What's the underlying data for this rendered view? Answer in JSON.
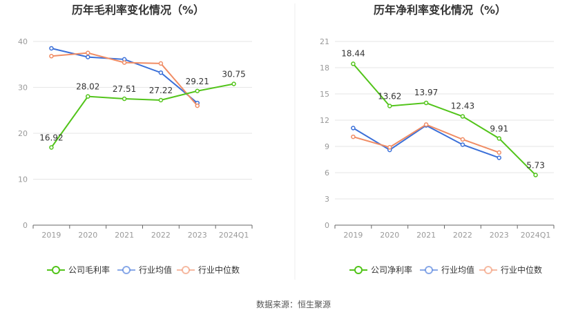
{
  "source": "数据来源：恒生聚源",
  "colors": {
    "company": "#52c41a",
    "industry_avg": "#3a6fd8",
    "industry_median": "#f08c64",
    "grid": "#e6e6e6",
    "axis": "#666666",
    "tick": "#999999",
    "label": "#333333",
    "divider": "#eeeeee"
  },
  "chart_data": [
    {
      "type": "line",
      "title": "历年毛利率变化情况（%）",
      "categories": [
        "2019",
        "2020",
        "2021",
        "2022",
        "2023",
        "2024Q1"
      ],
      "ylim": [
        0,
        40
      ],
      "yticks": [
        0,
        10,
        20,
        30,
        40
      ],
      "grid": true,
      "legend_position": "bottom",
      "series": [
        {
          "name": "公司毛利率",
          "role": "company",
          "values": [
            16.92,
            28.02,
            27.51,
            27.22,
            29.21,
            30.75
          ],
          "labels": [
            "16.92",
            "28.02",
            "27.51",
            "27.22",
            "29.21",
            "30.75"
          ]
        },
        {
          "name": "行业均值",
          "role": "industry_avg",
          "values": [
            38.5,
            36.6,
            36.1,
            33.2,
            26.6,
            null
          ]
        },
        {
          "name": "行业中位数",
          "role": "industry_median",
          "values": [
            36.8,
            37.5,
            35.4,
            35.2,
            26.0,
            null
          ]
        }
      ]
    },
    {
      "type": "line",
      "title": "历年净利率变化情况（%）",
      "categories": [
        "2019",
        "2020",
        "2021",
        "2022",
        "2023",
        "2024Q1"
      ],
      "ylim": [
        0,
        21
      ],
      "yticks": [
        0,
        3,
        6,
        9,
        12,
        15,
        18,
        21
      ],
      "grid": true,
      "legend_position": "bottom",
      "series": [
        {
          "name": "公司净利率",
          "role": "company",
          "values": [
            18.44,
            13.62,
            13.97,
            12.43,
            9.91,
            5.73
          ],
          "labels": [
            "18.44",
            "13.62",
            "13.97",
            "12.43",
            "9.91",
            "5.73"
          ]
        },
        {
          "name": "行业均值",
          "role": "industry_avg",
          "values": [
            11.1,
            8.6,
            11.4,
            9.2,
            7.7,
            null
          ]
        },
        {
          "name": "行业中位数",
          "role": "industry_median",
          "values": [
            10.1,
            8.9,
            11.5,
            9.8,
            8.3,
            null
          ]
        }
      ]
    }
  ]
}
